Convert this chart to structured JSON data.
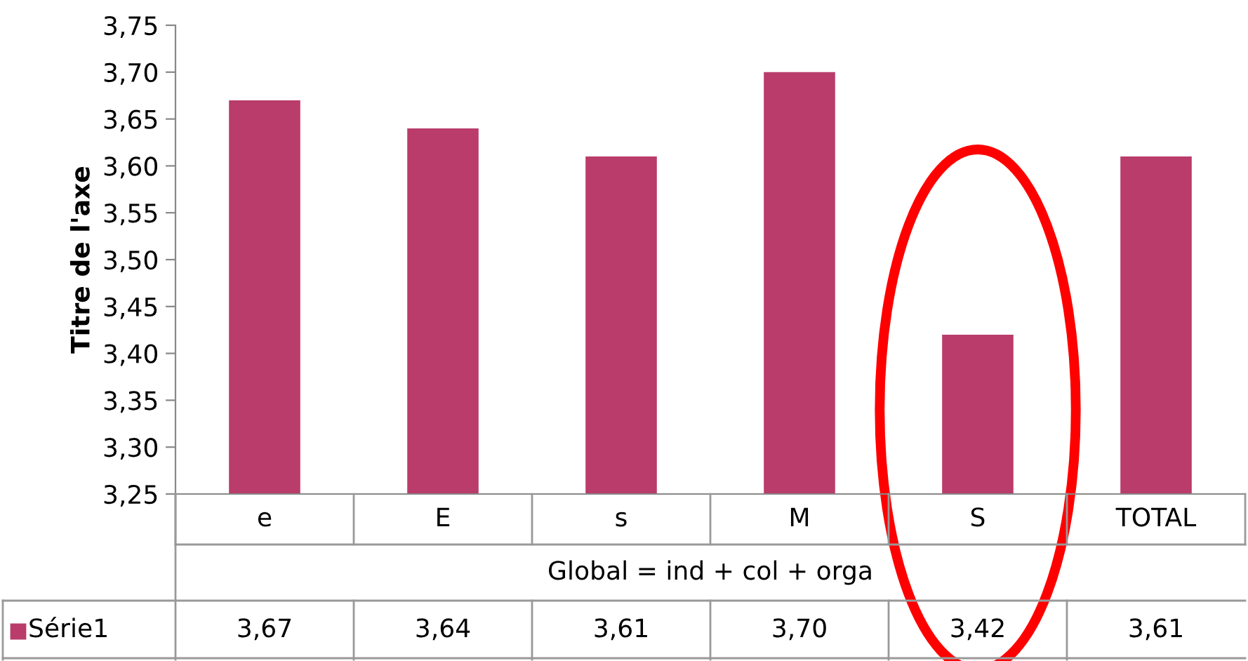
{
  "chart_data": {
    "type": "bar",
    "ylabel": "Titre de l'axe",
    "xlabel": "Global = ind + col + orga",
    "categories": [
      "e",
      "E",
      "s",
      "M",
      "S",
      "TOTAL"
    ],
    "series": [
      {
        "name": "Série1",
        "color": "#b93c6a",
        "values": [
          3.67,
          3.64,
          3.61,
          3.7,
          3.42,
          3.61
        ],
        "value_labels": [
          "3,67",
          "3,64",
          "3,61",
          "3,70",
          "3,42",
          "3,61"
        ]
      }
    ],
    "ylim": [
      3.25,
      3.75
    ],
    "yticks": [
      {
        "value": 3.25,
        "label": "3,25"
      },
      {
        "value": 3.3,
        "label": "3,30"
      },
      {
        "value": 3.35,
        "label": "3,35"
      },
      {
        "value": 3.4,
        "label": "3,40"
      },
      {
        "value": 3.45,
        "label": "3,45"
      },
      {
        "value": 3.5,
        "label": "3,50"
      },
      {
        "value": 3.55,
        "label": "3,55"
      },
      {
        "value": 3.6,
        "label": "3,60"
      },
      {
        "value": 3.65,
        "label": "3,65"
      },
      {
        "value": 3.7,
        "label": "3,70"
      },
      {
        "value": 3.75,
        "label": "3,75"
      }
    ],
    "grid": false,
    "legend": "bottom"
  }
}
